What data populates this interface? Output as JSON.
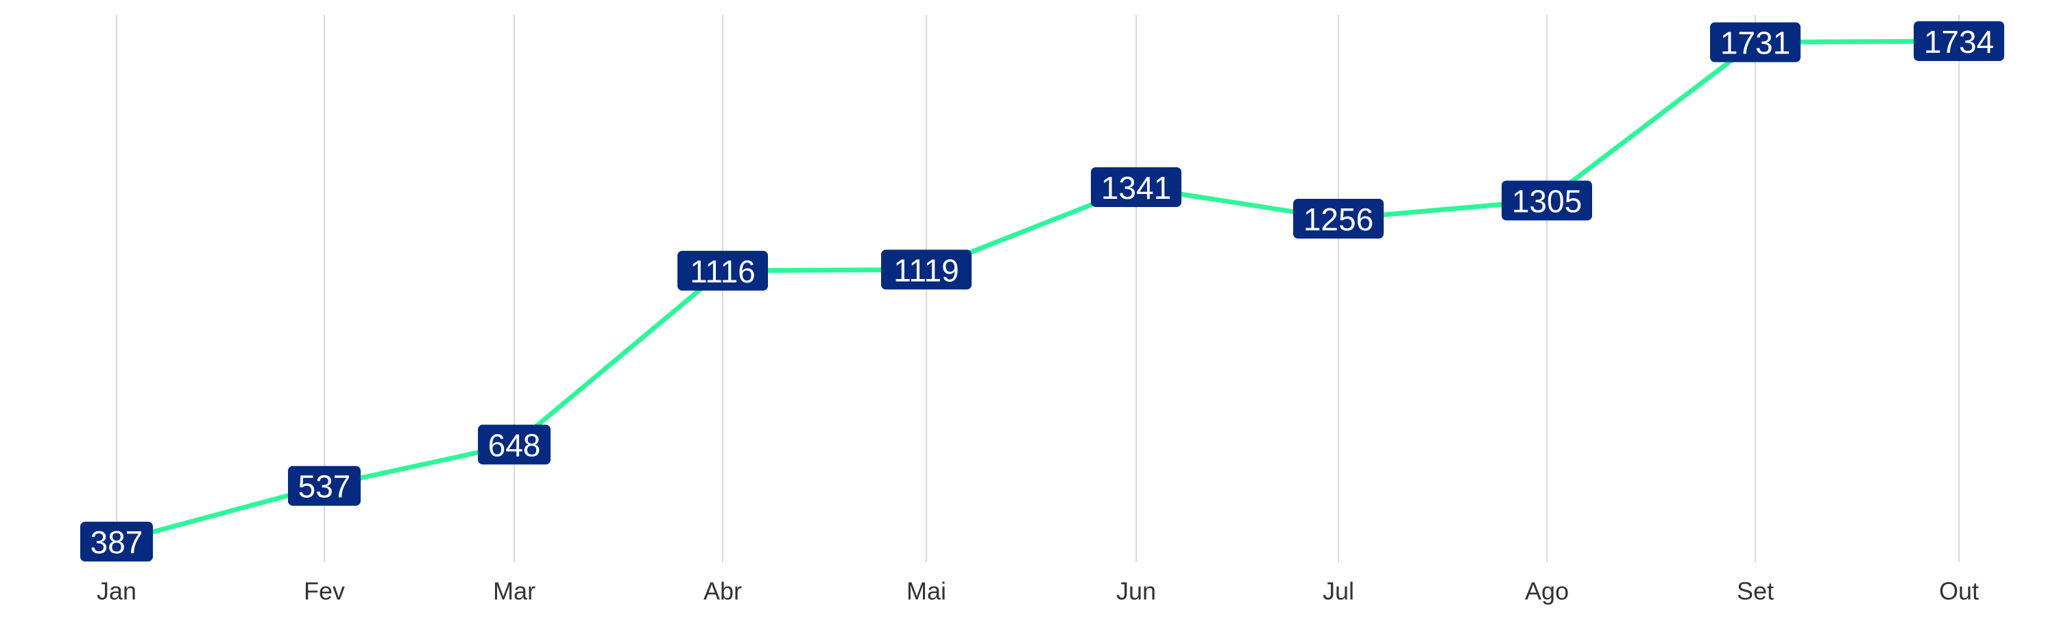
{
  "chart_data": {
    "type": "line",
    "categories": [
      "Jan",
      "Fev",
      "Mar",
      "Abr",
      "Mai",
      "Jun",
      "Jul",
      "Ago",
      "Set",
      "Out"
    ],
    "series": [
      {
        "values": [
          387,
          537,
          648,
          1116,
          1119,
          1341,
          1256,
          1305,
          1731,
          1734
        ]
      }
    ],
    "data_labels": [
      "387",
      "537",
      "648",
      "1116",
      "1119",
      "1341",
      "1256",
      "1305",
      "1731",
      "1734"
    ],
    "title": "",
    "xlabel": "",
    "ylabel": "",
    "ylim": [
      387,
      1734
    ],
    "grid": "vertical",
    "legend": "none",
    "colors": {
      "line": "#2ef59a",
      "label_background": "#052a7f",
      "label_text": "#ffffff",
      "grid": "#d9d9d9",
      "tick_text": "#333333"
    }
  }
}
